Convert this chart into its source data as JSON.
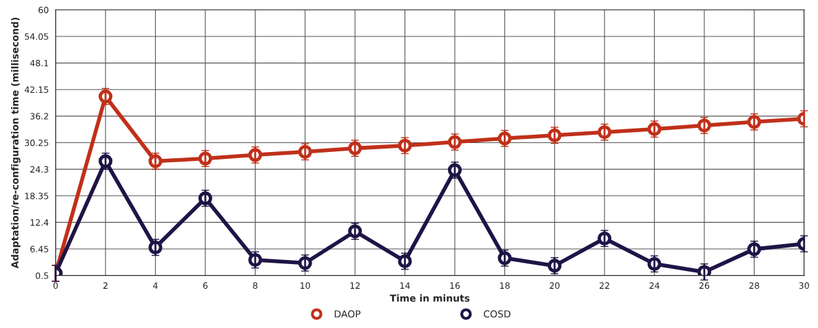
{
  "chart_data": {
    "type": "line",
    "xlabel": "Time in minuts",
    "ylabel": "Adaptation/re-configuration time (millisecond)",
    "x": [
      0,
      2,
      4,
      6,
      8,
      10,
      12,
      14,
      16,
      18,
      20,
      22,
      24,
      26,
      28,
      30
    ],
    "series": [
      {
        "name": "DAOP",
        "color": "#c0301a",
        "values": [
          1.0,
          40.6,
          26.1,
          26.7,
          27.5,
          28.2,
          29.0,
          29.6,
          30.4,
          31.2,
          31.9,
          32.6,
          33.3,
          34.1,
          34.9,
          35.6
        ],
        "errors": [
          1.8,
          1.8,
          1.8,
          1.8,
          1.8,
          1.8,
          1.8,
          1.8,
          1.8,
          1.8,
          1.8,
          1.8,
          1.8,
          1.8,
          1.8,
          1.8
        ]
      },
      {
        "name": "COSD",
        "color": "#1f1446",
        "values": [
          1.0,
          26.1,
          6.8,
          17.8,
          4.0,
          3.3,
          10.4,
          3.7,
          24.1,
          4.4,
          2.7,
          8.8,
          3.1,
          1.3,
          6.4,
          7.6
        ],
        "errors": [
          1.8,
          1.8,
          1.8,
          1.8,
          1.8,
          1.8,
          1.8,
          1.8,
          1.8,
          1.8,
          1.8,
          1.8,
          1.8,
          1.8,
          1.8,
          1.8
        ]
      }
    ],
    "xlim": [
      0,
      30
    ],
    "xticks": [
      0,
      2,
      4,
      6,
      8,
      10,
      12,
      14,
      16,
      18,
      20,
      22,
      24,
      26,
      28,
      30
    ],
    "ylim": [
      0.5,
      60
    ],
    "yticks": [
      0.5,
      6.45,
      12.4,
      18.35,
      24.3,
      30.25,
      36.2,
      42.15,
      48.1,
      54.05,
      60
    ],
    "grid": true,
    "legend": "bottom",
    "marker": "circle",
    "line_style": "solid"
  }
}
